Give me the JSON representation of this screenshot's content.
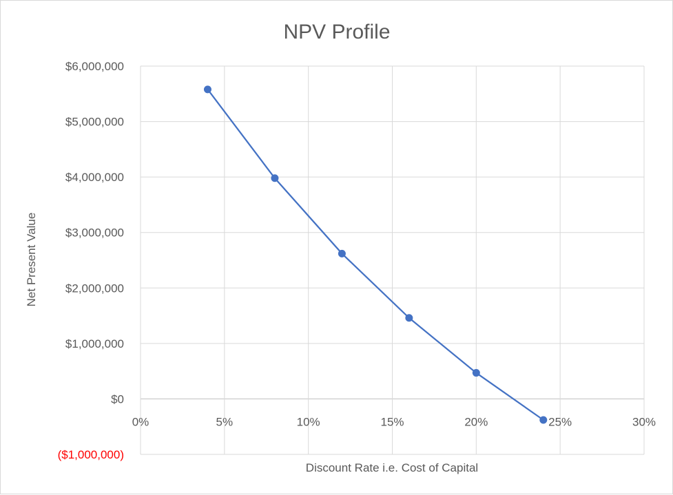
{
  "chart_data": {
    "type": "line",
    "title": "NPV Profile",
    "xlabel": "Discount Rate i.e. Cost of Capital",
    "ylabel": "Net Present Value",
    "xlim": [
      0,
      0.3
    ],
    "ylim": [
      -1000000,
      6000000
    ],
    "grid": true,
    "legend": "none",
    "x_ticks": [
      0,
      0.05,
      0.1,
      0.15,
      0.2,
      0.25,
      0.3
    ],
    "x_tick_labels": [
      "0%",
      "5%",
      "10%",
      "15%",
      "20%",
      "25%",
      "30%"
    ],
    "y_ticks": [
      -1000000,
      0,
      1000000,
      2000000,
      3000000,
      4000000,
      5000000,
      6000000
    ],
    "y_tick_labels": [
      "($1,000,000)",
      "$0",
      "$1,000,000",
      "$2,000,000",
      "$3,000,000",
      "$4,000,000",
      "$5,000,000",
      "$6,000,000"
    ],
    "colors": {
      "series": "#4472c4",
      "negative_tick": "#ff0000",
      "grid": "#d9d9d9",
      "text": "#595959"
    },
    "series": [
      {
        "x": [
          0.04,
          0.08,
          0.12,
          0.16,
          0.2,
          0.24
        ],
        "y": [
          5580000,
          3980000,
          2620000,
          1460000,
          470000,
          -380000
        ]
      }
    ]
  }
}
